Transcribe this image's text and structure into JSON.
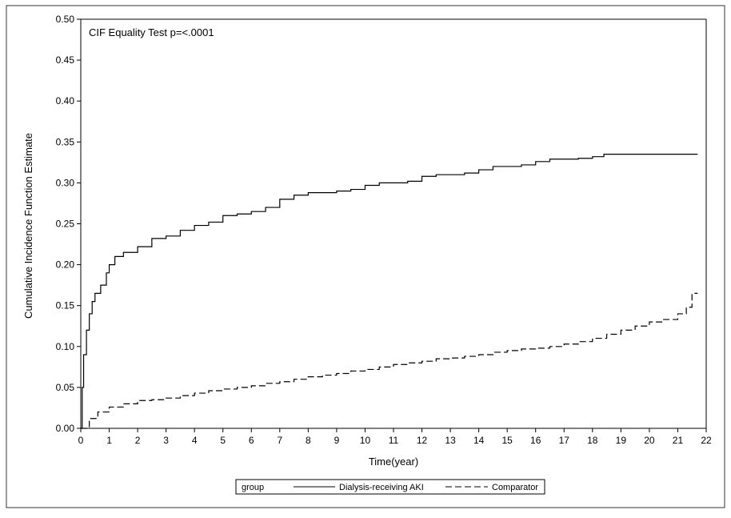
{
  "chart_data": {
    "type": "line",
    "annotation": "CIF Equality Test p=<.0001",
    "xlabel": "Time(year)",
    "ylabel": "Cumulative Incidence Function Estimate",
    "xlim": [
      0,
      22
    ],
    "ylim": [
      0,
      0.5
    ],
    "x_ticks": [
      "0",
      "1",
      "2",
      "3",
      "4",
      "5",
      "6",
      "7",
      "8",
      "9",
      "10",
      "11",
      "12",
      "13",
      "14",
      "15",
      "16",
      "17",
      "18",
      "19",
      "20",
      "21",
      "22"
    ],
    "y_ticks": [
      "0.00",
      "0.05",
      "0.10",
      "0.15",
      "0.20",
      "0.25",
      "0.30",
      "0.35",
      "0.40",
      "0.45",
      "0.50"
    ],
    "legend": {
      "title": "group",
      "placement": "bottom-center",
      "entries": [
        "Dialysis-receiving AKI",
        "Comparator"
      ]
    },
    "series": [
      {
        "name": "Dialysis-receiving AKI",
        "style": "solid",
        "color": "#000000",
        "points": [
          [
            0,
            0
          ],
          [
            0.05,
            0.05
          ],
          [
            0.1,
            0.09
          ],
          [
            0.2,
            0.12
          ],
          [
            0.3,
            0.14
          ],
          [
            0.4,
            0.155
          ],
          [
            0.5,
            0.165
          ],
          [
            0.7,
            0.175
          ],
          [
            0.9,
            0.19
          ],
          [
            1.0,
            0.2
          ],
          [
            1.2,
            0.21
          ],
          [
            1.5,
            0.215
          ],
          [
            2.0,
            0.222
          ],
          [
            2.5,
            0.232
          ],
          [
            3.0,
            0.235
          ],
          [
            3.5,
            0.242
          ],
          [
            4.0,
            0.248
          ],
          [
            4.5,
            0.252
          ],
          [
            5.0,
            0.26
          ],
          [
            5.5,
            0.262
          ],
          [
            6.0,
            0.265
          ],
          [
            6.5,
            0.27
          ],
          [
            7.0,
            0.28
          ],
          [
            7.5,
            0.285
          ],
          [
            8.0,
            0.288
          ],
          [
            9.0,
            0.29
          ],
          [
            9.5,
            0.292
          ],
          [
            10.0,
            0.297
          ],
          [
            10.5,
            0.3
          ],
          [
            11.5,
            0.302
          ],
          [
            12.0,
            0.308
          ],
          [
            12.5,
            0.31
          ],
          [
            13.5,
            0.312
          ],
          [
            14.0,
            0.316
          ],
          [
            14.5,
            0.32
          ],
          [
            15.5,
            0.322
          ],
          [
            16.0,
            0.326
          ],
          [
            16.5,
            0.329
          ],
          [
            17.5,
            0.33
          ],
          [
            18.0,
            0.332
          ],
          [
            18.4,
            0.335
          ],
          [
            21.7,
            0.335
          ]
        ]
      },
      {
        "name": "Comparator",
        "style": "dashed",
        "color": "#000000",
        "points": [
          [
            0,
            0
          ],
          [
            0.3,
            0.012
          ],
          [
            0.6,
            0.02
          ],
          [
            1.0,
            0.026
          ],
          [
            1.5,
            0.03
          ],
          [
            2.0,
            0.034
          ],
          [
            2.5,
            0.035
          ],
          [
            3.0,
            0.037
          ],
          [
            3.5,
            0.04
          ],
          [
            4.0,
            0.043
          ],
          [
            4.5,
            0.046
          ],
          [
            5.0,
            0.048
          ],
          [
            5.5,
            0.05
          ],
          [
            6.0,
            0.052
          ],
          [
            6.5,
            0.055
          ],
          [
            7.0,
            0.057
          ],
          [
            7.5,
            0.06
          ],
          [
            8.0,
            0.063
          ],
          [
            8.5,
            0.065
          ],
          [
            9.0,
            0.067
          ],
          [
            9.5,
            0.07
          ],
          [
            10.0,
            0.072
          ],
          [
            10.5,
            0.075
          ],
          [
            11.0,
            0.078
          ],
          [
            11.5,
            0.08
          ],
          [
            12.0,
            0.082
          ],
          [
            12.5,
            0.085
          ],
          [
            13.0,
            0.086
          ],
          [
            13.5,
            0.088
          ],
          [
            14.0,
            0.09
          ],
          [
            14.5,
            0.093
          ],
          [
            15.0,
            0.095
          ],
          [
            15.5,
            0.097
          ],
          [
            16.0,
            0.098
          ],
          [
            16.5,
            0.1
          ],
          [
            17.0,
            0.103
          ],
          [
            17.5,
            0.106
          ],
          [
            18.0,
            0.11
          ],
          [
            18.5,
            0.115
          ],
          [
            19.0,
            0.12
          ],
          [
            19.5,
            0.125
          ],
          [
            20.0,
            0.13
          ],
          [
            20.5,
            0.133
          ],
          [
            21.0,
            0.14
          ],
          [
            21.3,
            0.148
          ],
          [
            21.5,
            0.165
          ],
          [
            21.7,
            0.165
          ]
        ]
      }
    ]
  }
}
